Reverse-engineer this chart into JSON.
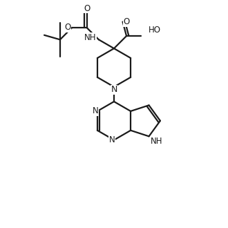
{
  "background": "#ffffff",
  "line_color": "#1a1a1a",
  "line_width": 1.6,
  "font_size": 8.5,
  "figure_size": [
    3.3,
    3.3
  ],
  "dpi": 100,
  "xlim": [
    -1.0,
    9.0
  ],
  "ylim": [
    -0.5,
    9.5
  ]
}
